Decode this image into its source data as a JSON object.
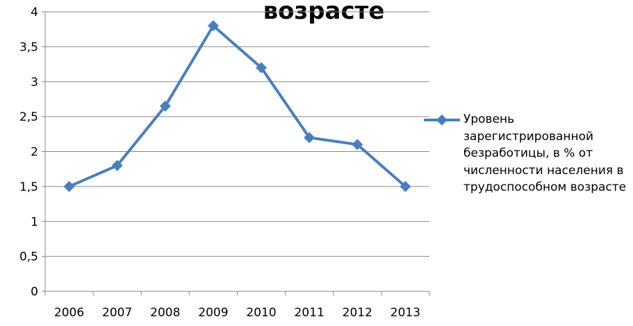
{
  "chart_data": {
    "type": "line",
    "title": "возрасте",
    "categories": [
      "2006",
      "2007",
      "2008",
      "2009",
      "2010",
      "2011",
      "2012",
      "2013"
    ],
    "series": [
      {
        "name": "Уровень  зарегистрированной безработицы, в % от численности населения в трудоспособном возрасте",
        "color": "#4a7ebb",
        "values": [
          1.5,
          1.8,
          2.65,
          3.8,
          3.2,
          2.2,
          2.1,
          1.5
        ]
      }
    ],
    "ylim": [
      0,
      4
    ],
    "yticks": [
      0,
      {
        "value": 0.5,
        "label": "0,5"
      },
      1,
      {
        "value": 1.5,
        "label": "1,5"
      },
      2,
      {
        "value": 2.5,
        "label": "2,5"
      },
      3,
      {
        "value": 3.5,
        "label": "3,5"
      },
      4
    ],
    "grid": true,
    "legend": "right"
  }
}
